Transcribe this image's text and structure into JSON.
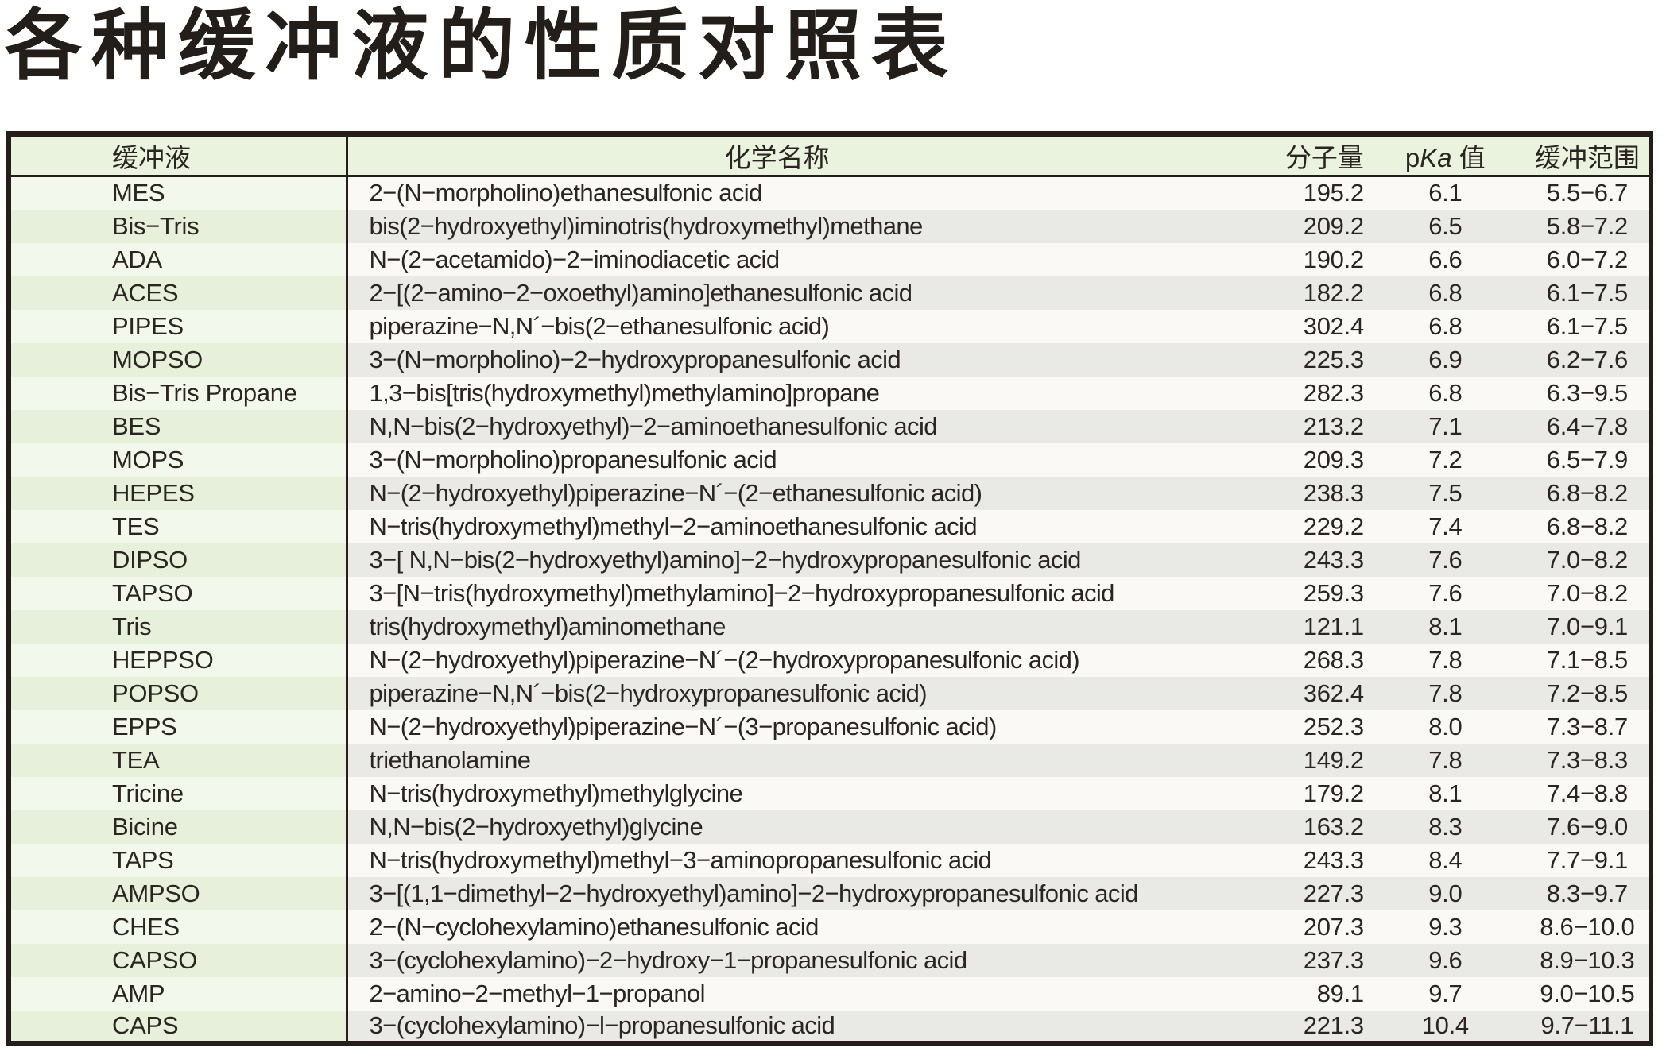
{
  "title": "各种缓冲液的性质对照表",
  "table": {
    "columns": {
      "buffer": "缓冲液",
      "chemical": "化学名称",
      "mw": "分子量",
      "pka_prefix": "p",
      "pka_italic": "Ka",
      "pka_suffix": " 值",
      "range": "缓冲范围"
    },
    "rows": [
      {
        "buffer": "MES",
        "chemical": "2−(N−morpholino)ethanesulfonic acid",
        "mw": "195.2",
        "pka": "6.1",
        "range": "5.5−6.7"
      },
      {
        "buffer": "Bis−Tris",
        "chemical": "bis(2−hydroxyethyl)iminotris(hydroxymethyl)methane",
        "mw": "209.2",
        "pka": "6.5",
        "range": "5.8−7.2"
      },
      {
        "buffer": "ADA",
        "chemical": "N−(2−acetamido)−2−iminodiacetic acid",
        "mw": "190.2",
        "pka": "6.6",
        "range": "6.0−7.2"
      },
      {
        "buffer": "ACES",
        "chemical": "2−[(2−amino−2−oxoethyl)amino]ethanesulfonic acid",
        "mw": "182.2",
        "pka": "6.8",
        "range": "6.1−7.5"
      },
      {
        "buffer": "PIPES",
        "chemical": "piperazine−N,N´−bis(2−ethanesulfonic acid)",
        "mw": "302.4",
        "pka": "6.8",
        "range": "6.1−7.5"
      },
      {
        "buffer": "MOPSO",
        "chemical": "3−(N−morpholino)−2−hydroxypropanesulfonic acid",
        "mw": "225.3",
        "pka": "6.9",
        "range": "6.2−7.6"
      },
      {
        "buffer": "Bis−Tris Propane",
        "chemical": "1,3−bis[tris(hydroxymethyl)methylamino]propane",
        "mw": "282.3",
        "pka": "6.8",
        "range": "6.3−9.5"
      },
      {
        "buffer": "BES",
        "chemical": "N,N−bis(2−hydroxyethyl)−2−aminoethanesulfonic acid",
        "mw": "213.2",
        "pka": "7.1",
        "range": "6.4−7.8"
      },
      {
        "buffer": "MOPS",
        "chemical": "3−(N−morpholino)propanesulfonic acid",
        "mw": "209.3",
        "pka": "7.2",
        "range": "6.5−7.9"
      },
      {
        "buffer": "HEPES",
        "chemical": "N−(2−hydroxyethyl)piperazine−N´−(2−ethanesulfonic acid)",
        "mw": "238.3",
        "pka": "7.5",
        "range": "6.8−8.2"
      },
      {
        "buffer": "TES",
        "chemical": "N−tris(hydroxymethyl)methyl−2−aminoethanesulfonic acid",
        "mw": "229.2",
        "pka": "7.4",
        "range": "6.8−8.2"
      },
      {
        "buffer": "DIPSO",
        "chemical": "3−[ N,N−bis(2−hydroxyethyl)amino]−2−hydroxypropanesulfonic acid",
        "mw": "243.3",
        "pka": "7.6",
        "range": "7.0−8.2"
      },
      {
        "buffer": "TAPSO",
        "chemical": "3−[N−tris(hydroxymethyl)methylamino]−2−hydroxypropanesulfonic acid",
        "mw": "259.3",
        "pka": "7.6",
        "range": "7.0−8.2"
      },
      {
        "buffer": "Tris",
        "chemical": "tris(hydroxymethyl)aminomethane",
        "mw": "121.1",
        "pka": "8.1",
        "range": "7.0−9.1"
      },
      {
        "buffer": "HEPPSO",
        "chemical": "N−(2−hydroxyethyl)piperazine−N´−(2−hydroxypropanesulfonic acid)",
        "mw": "268.3",
        "pka": "7.8",
        "range": "7.1−8.5"
      },
      {
        "buffer": "POPSO",
        "chemical": "piperazine−N,N´−bis(2−hydroxypropanesulfonic acid)",
        "mw": "362.4",
        "pka": "7.8",
        "range": "7.2−8.5"
      },
      {
        "buffer": "EPPS",
        "chemical": "N−(2−hydroxyethyl)piperazine−N´−(3−propanesulfonic acid)",
        "mw": "252.3",
        "pka": "8.0",
        "range": "7.3−8.7"
      },
      {
        "buffer": "TEA",
        "chemical": "triethanolamine",
        "mw": "149.2",
        "pka": "7.8",
        "range": "7.3−8.3"
      },
      {
        "buffer": "Tricine",
        "chemical": "N−tris(hydroxymethyl)methylglycine",
        "mw": "179.2",
        "pka": "8.1",
        "range": "7.4−8.8"
      },
      {
        "buffer": "Bicine",
        "chemical": "N,N−bis(2−hydroxyethyl)glycine",
        "mw": "163.2",
        "pka": "8.3",
        "range": "7.6−9.0"
      },
      {
        "buffer": "TAPS",
        "chemical": "N−tris(hydroxymethyl)methyl−3−aminopropanesulfonic acid",
        "mw": "243.3",
        "pka": "8.4",
        "range": "7.7−9.1"
      },
      {
        "buffer": "AMPSO",
        "chemical": "3−[(1,1−dimethyl−2−hydroxyethyl)amino]−2−hydroxypropanesulfonic acid",
        "mw": "227.3",
        "pka": "9.0",
        "range": "8.3−9.7"
      },
      {
        "buffer": "CHES",
        "chemical": "2−(N−cyclohexylamino)ethanesulfonic acid",
        "mw": "207.3",
        "pka": "9.3",
        "range": "8.6−10.0"
      },
      {
        "buffer": "CAPSO",
        "chemical": "3−(cyclohexylamino)−2−hydroxy−1−propanesulfonic acid",
        "mw": "237.3",
        "pka": "9.6",
        "range": "8.9−10.3"
      },
      {
        "buffer": "AMP",
        "chemical": "2−amino−2−methyl−1−propanol",
        "mw": "89.1",
        "pka": "9.7",
        "range": "9.0−10.5"
      },
      {
        "buffer": "CAPS",
        "chemical": "3−(cyclohexylamino)−l−propanesulfonic acid",
        "mw": "221.3",
        "pka": "10.4",
        "range": "9.7−11.1"
      }
    ]
  },
  "colors": {
    "ink": "#2b2522",
    "border": "#241d19",
    "header-green": "#eaf3de",
    "buffer-col-light": "#f3f8ec",
    "buffer-col-dark": "#e6f0da",
    "row-light": "#faf9f6",
    "row-dark": "#e9e9e6",
    "page-bg": "#ffffff"
  }
}
